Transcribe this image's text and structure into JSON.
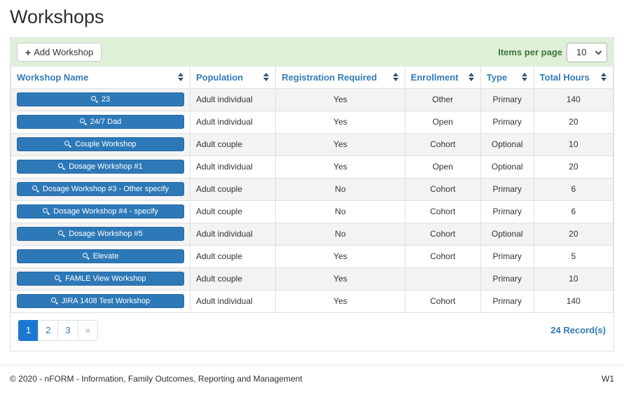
{
  "page": {
    "title": "Workshops"
  },
  "toolbar": {
    "add_button_label": "Add Workshop",
    "items_per_page_label": "Items per page",
    "items_per_page_value": "10",
    "items_per_page_options": [
      "10"
    ]
  },
  "table": {
    "columns": [
      "Workshop Name",
      "Population",
      "Registration Required",
      "Enrollment",
      "Type",
      "Total Hours"
    ],
    "rows": [
      {
        "name": "23",
        "population": "Adult individual",
        "registration_required": "Yes",
        "enrollment": "Other",
        "type": "Primary",
        "total_hours": "140"
      },
      {
        "name": "24/7 Dad",
        "population": "Adult individual",
        "registration_required": "Yes",
        "enrollment": "Open",
        "type": "Primary",
        "total_hours": "20"
      },
      {
        "name": "Couple Workshop",
        "population": "Adult couple",
        "registration_required": "Yes",
        "enrollment": "Cohort",
        "type": "Optional",
        "total_hours": "10"
      },
      {
        "name": "Dosage Workshop #1",
        "population": "Adult individual",
        "registration_required": "Yes",
        "enrollment": "Open",
        "type": "Optional",
        "total_hours": "20"
      },
      {
        "name": "Dosage Workshop #3 - Other specify",
        "population": "Adult couple",
        "registration_required": "No",
        "enrollment": "Cohort",
        "type": "Primary",
        "total_hours": "6"
      },
      {
        "name": "Dosage Workshop #4 - specify",
        "population": "Adult couple",
        "registration_required": "No",
        "enrollment": "Cohort",
        "type": "Primary",
        "total_hours": "6"
      },
      {
        "name": "Dosage Workshop #5",
        "population": "Adult individual",
        "registration_required": "No",
        "enrollment": "Cohort",
        "type": "Optional",
        "total_hours": "20"
      },
      {
        "name": "Elevate",
        "population": "Adult couple",
        "registration_required": "Yes",
        "enrollment": "Cohort",
        "type": "Primary",
        "total_hours": "5"
      },
      {
        "name": "FAMLE View Workshop",
        "population": "Adult couple",
        "registration_required": "Yes",
        "enrollment": "",
        "type": "Primary",
        "total_hours": "10"
      },
      {
        "name": "JIRA 1408 Test Workshop",
        "population": "Adult individual",
        "registration_required": "Yes",
        "enrollment": "Cohort",
        "type": "Primary",
        "total_hours": "140"
      }
    ]
  },
  "pagination": {
    "pages": [
      "1",
      "2",
      "3"
    ],
    "active_page": "1",
    "next_label": "»",
    "records_label": "24 Record(s)"
  },
  "footer": {
    "copyright": "© 2020 - nFORM - Information, Family Outcomes, Reporting and Management",
    "version": "W1"
  },
  "colors": {
    "accent_blue": "#337ab7",
    "button_blue": "#2d79b8",
    "toolbar_green": "#dff0d8",
    "label_green": "#3c763d"
  }
}
